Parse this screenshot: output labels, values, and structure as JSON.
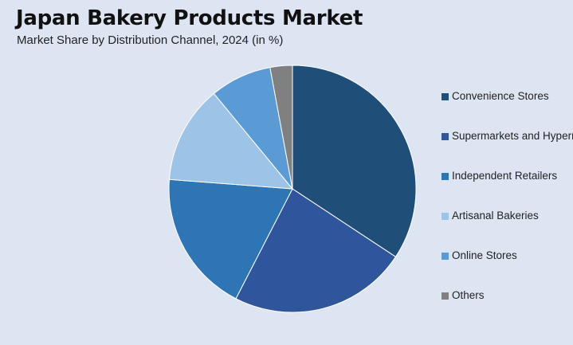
{
  "header": {
    "title": "Japan Bakery Products Market",
    "subtitle": "Market Share by Distribution Channel, 2024 (in %)"
  },
  "chart_data": {
    "type": "pie",
    "title": "Japan Bakery Products Market",
    "subtitle": "Market Share by Distribution Channel, 2024 (in %)",
    "legend_position": "right",
    "series": [
      {
        "name": "Convenience Stores",
        "value": 35.3,
        "color": "#1f4e79"
      },
      {
        "name": "Supermarkets and Hypermarkets",
        "value": 24.0,
        "color": "#2f569c"
      },
      {
        "name": "Independent Retailers",
        "value": 19.2,
        "color": "#2e75b6"
      },
      {
        "name": "Artisanal Bakeries",
        "value": 13.2,
        "color": "#9dc3e6"
      },
      {
        "name": "Online Stores",
        "value": 8.3,
        "color": "#5b9bd5"
      },
      {
        "name": "Others",
        "value": 3.0,
        "color": "#808080"
      }
    ]
  }
}
